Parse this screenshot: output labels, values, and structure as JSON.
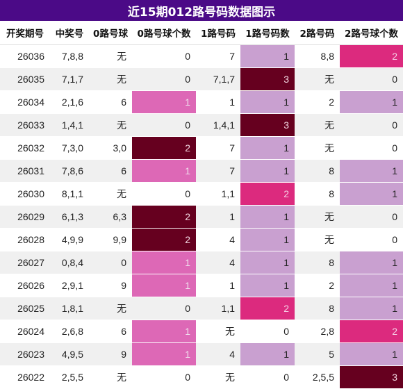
{
  "title": "近15期012路号码数据图示",
  "headers": [
    "开奖期号",
    "中奖号",
    "0路号球",
    "0路号球个数",
    "1路号码",
    "1路号码数",
    "2路号码",
    "2路号球个数"
  ],
  "rows": [
    {
      "period": "26036",
      "number": "7,8,8",
      "r0": "无",
      "r0c": "0",
      "r1": "7",
      "r1c": "1",
      "r2": "8,8",
      "r2c": "2"
    },
    {
      "period": "26035",
      "number": "7,1,7",
      "r0": "无",
      "r0c": "0",
      "r1": "7,1,7",
      "r1c": "3",
      "r2": "无",
      "r2c": "0"
    },
    {
      "period": "26034",
      "number": "2,1,6",
      "r0": "6",
      "r0c": "1",
      "r1": "1",
      "r1c": "1",
      "r2": "2",
      "r2c": "1"
    },
    {
      "period": "26033",
      "number": "1,4,1",
      "r0": "无",
      "r0c": "0",
      "r1": "1,4,1",
      "r1c": "3",
      "r2": "无",
      "r2c": "0"
    },
    {
      "period": "26032",
      "number": "7,3,0",
      "r0": "3,0",
      "r0c": "2",
      "r1": "7",
      "r1c": "1",
      "r2": "无",
      "r2c": "0"
    },
    {
      "period": "26031",
      "number": "7,8,6",
      "r0": "6",
      "r0c": "1",
      "r1": "7",
      "r1c": "1",
      "r2": "8",
      "r2c": "1"
    },
    {
      "period": "26030",
      "number": "8,1,1",
      "r0": "无",
      "r0c": "0",
      "r1": "1,1",
      "r1c": "2",
      "r2": "8",
      "r2c": "1"
    },
    {
      "period": "26029",
      "number": "6,1,3",
      "r0": "6,3",
      "r0c": "2",
      "r1": "1",
      "r1c": "1",
      "r2": "无",
      "r2c": "0"
    },
    {
      "period": "26028",
      "number": "4,9,9",
      "r0": "9,9",
      "r0c": "2",
      "r1": "4",
      "r1c": "1",
      "r2": "无",
      "r2c": "0"
    },
    {
      "period": "26027",
      "number": "0,8,4",
      "r0": "0",
      "r0c": "1",
      "r1": "4",
      "r1c": "1",
      "r2": "8",
      "r2c": "1"
    },
    {
      "period": "26026",
      "number": "2,9,1",
      "r0": "9",
      "r0c": "1",
      "r1": "1",
      "r1c": "1",
      "r2": "2",
      "r2c": "1"
    },
    {
      "period": "26025",
      "number": "1,8,1",
      "r0": "无",
      "r0c": "0",
      "r1": "1,1",
      "r1c": "2",
      "r2": "8",
      "r2c": "1"
    },
    {
      "period": "26024",
      "number": "2,6,8",
      "r0": "6",
      "r0c": "1",
      "r1": "无",
      "r1c": "0",
      "r2": "2,8",
      "r2c": "2"
    },
    {
      "period": "26023",
      "number": "4,9,5",
      "r0": "9",
      "r0c": "1",
      "r1": "4",
      "r1c": "1",
      "r2": "5",
      "r2c": "1"
    },
    {
      "period": "26022",
      "number": "2,5,5",
      "r0": "无",
      "r0c": "0",
      "r1": "无",
      "r1c": "0",
      "r2": "2,5,5",
      "r2c": "3"
    }
  ],
  "colors": {
    "title_bg": "#4b0a87",
    "count_0路_1": "#dd68b6",
    "count_1路_2路_1": "#c9a0d0",
    "count_2": "#dc2a7e",
    "count_3": "#66001f"
  }
}
